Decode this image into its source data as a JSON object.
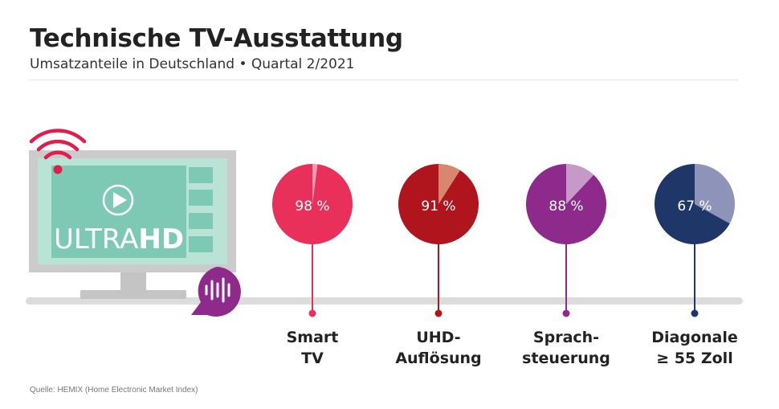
{
  "header": {
    "title": "Technische TV-Ausstattung",
    "subtitle": "Umsatzanteile in Deutschland • Quartal 2/2021"
  },
  "source": "Quelle: HEMIX (Home Electronic Market Index)",
  "illustration": {
    "screen_text_light": "ULTRA",
    "screen_text_bold": "HD",
    "icons": [
      "wifi-icon",
      "play-icon",
      "voice-bubble-icon",
      "tv-icon"
    ]
  },
  "colors": {
    "timeline": "#dcdcdc",
    "tv_frame": "#cbcbcb",
    "tv_screen": "#7ec9b4",
    "accent_wifi": "#e01e4e",
    "voice_bubble": "#8e2a8c"
  },
  "chart_data": {
    "type": "pie",
    "title": "Technische TV-Ausstattung",
    "subtitle": "Umsatzanteile in Deutschland • Quartal 2/2021",
    "unit": "%",
    "categories": [
      "Smart\nTV",
      "UHD-\nAuflösung",
      "Sprach-\nsteuerung",
      "Diagonale\n≥ 55 Zoll"
    ],
    "values": [
      98,
      91,
      88,
      67
    ],
    "value_labels": [
      "98 %",
      "91 %",
      "88 %",
      "67 %"
    ],
    "colors": [
      {
        "main": "#e8305a",
        "rest": "#f29bb0"
      },
      {
        "main": "#b0141c",
        "rest": "#d8866e"
      },
      {
        "main": "#8e2a8c",
        "rest": "#c69ac8"
      },
      {
        "main": "#1f3668",
        "rest": "#8d93b9"
      }
    ]
  }
}
